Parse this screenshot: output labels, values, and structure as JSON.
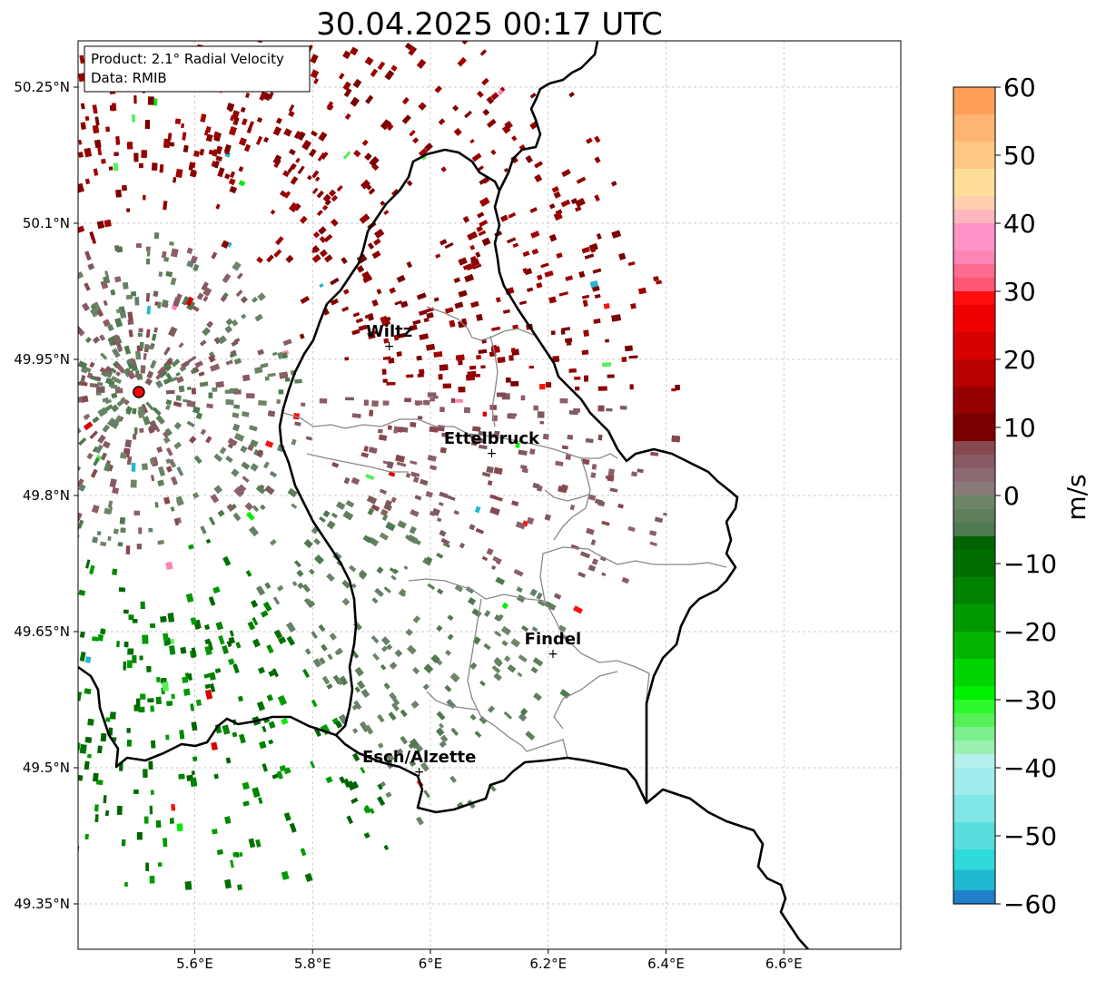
{
  "title": "30.04.2025 00:17 UTC",
  "info_box": {
    "product": "Product: 2.1° Radial Velocity",
    "data": "Data: RMIB"
  },
  "map": {
    "lon_range": [
      5.4,
      6.8
    ],
    "lat_range": [
      49.3,
      50.3
    ],
    "lon_ticks": [
      {
        "value": 5.6,
        "label": "5.6°E"
      },
      {
        "value": 5.8,
        "label": "5.8°E"
      },
      {
        "value": 6.0,
        "label": "6°E"
      },
      {
        "value": 6.2,
        "label": "6.2°E"
      },
      {
        "value": 6.4,
        "label": "6.4°E"
      },
      {
        "value": 6.6,
        "label": "6.6°E"
      }
    ],
    "lat_ticks": [
      {
        "value": 50.25,
        "label": "50.25°N"
      },
      {
        "value": 50.1,
        "label": "50.1°N"
      },
      {
        "value": 49.95,
        "label": "49.95°N"
      },
      {
        "value": 49.8,
        "label": "49.8°N"
      },
      {
        "value": 49.65,
        "label": "49.65°N"
      },
      {
        "value": 49.5,
        "label": "49.5°N"
      },
      {
        "value": 49.35,
        "label": "49.35°N"
      }
    ],
    "radar_site": {
      "lon": 5.505,
      "lat": 49.914
    },
    "cities": [
      {
        "name": "Wiltz",
        "lon": 5.93,
        "lat": 49.966
      },
      {
        "name": "Ettelbruck",
        "lon": 6.104,
        "lat": 49.848
      },
      {
        "name": "Findel",
        "lon": 6.208,
        "lat": 49.627
      },
      {
        "name": "Esch/Alzette",
        "lon": 5.981,
        "lat": 49.497
      }
    ]
  },
  "colorbar": {
    "label": "m/s",
    "min": -60,
    "max": 60,
    "ticks": [
      {
        "value": 60,
        "label": "60"
      },
      {
        "value": 50,
        "label": "50"
      },
      {
        "value": 40,
        "label": "40"
      },
      {
        "value": 30,
        "label": "30"
      },
      {
        "value": 20,
        "label": "20"
      },
      {
        "value": 10,
        "label": "10"
      },
      {
        "value": 0,
        "label": "0"
      },
      {
        "value": -10,
        "label": "−10"
      },
      {
        "value": -20,
        "label": "−20"
      },
      {
        "value": -30,
        "label": "−30"
      },
      {
        "value": -40,
        "label": "−40"
      },
      {
        "value": -50,
        "label": "−50"
      },
      {
        "value": -60,
        "label": "−60"
      }
    ],
    "bands": [
      {
        "from": 56,
        "to": 60,
        "color": "#ff9f5a"
      },
      {
        "from": 52,
        "to": 56,
        "color": "#ffb571"
      },
      {
        "from": 48,
        "to": 52,
        "color": "#ffc783"
      },
      {
        "from": 44,
        "to": 48,
        "color": "#ffdf98"
      },
      {
        "from": 42,
        "to": 44,
        "color": "#ffcfb0"
      },
      {
        "from": 40,
        "to": 42,
        "color": "#ffb6c0"
      },
      {
        "from": 36,
        "to": 40,
        "color": "#ff93c8"
      },
      {
        "from": 34,
        "to": 36,
        "color": "#ff84b6"
      },
      {
        "from": 32,
        "to": 34,
        "color": "#ff6c90"
      },
      {
        "from": 30,
        "to": 32,
        "color": "#ff5775"
      },
      {
        "from": 28,
        "to": 30,
        "color": "#ff0d0d"
      },
      {
        "from": 24,
        "to": 28,
        "color": "#ee0000"
      },
      {
        "from": 20,
        "to": 24,
        "color": "#d60000"
      },
      {
        "from": 16,
        "to": 20,
        "color": "#b80000"
      },
      {
        "from": 12,
        "to": 16,
        "color": "#950000"
      },
      {
        "from": 8,
        "to": 12,
        "color": "#7a0000"
      },
      {
        "from": 6,
        "to": 8,
        "color": "#874850"
      },
      {
        "from": 4,
        "to": 6,
        "color": "#8a5a64"
      },
      {
        "from": 2,
        "to": 4,
        "color": "#8c6a72"
      },
      {
        "from": 0,
        "to": 2,
        "color": "#8b7a7a"
      },
      {
        "from": -2,
        "to": 0,
        "color": "#6d8566"
      },
      {
        "from": -4,
        "to": -2,
        "color": "#5e7f5a"
      },
      {
        "from": -6,
        "to": -4,
        "color": "#4f794e"
      },
      {
        "from": -8,
        "to": -6,
        "color": "#006400"
      },
      {
        "from": -12,
        "to": -8,
        "color": "#006f00"
      },
      {
        "from": -16,
        "to": -12,
        "color": "#008300"
      },
      {
        "from": -20,
        "to": -16,
        "color": "#009a00"
      },
      {
        "from": -24,
        "to": -20,
        "color": "#00b400"
      },
      {
        "from": -28,
        "to": -24,
        "color": "#00d400"
      },
      {
        "from": -30,
        "to": -28,
        "color": "#00ee00"
      },
      {
        "from": -32,
        "to": -30,
        "color": "#2cf82c"
      },
      {
        "from": -34,
        "to": -32,
        "color": "#56f056"
      },
      {
        "from": -36,
        "to": -34,
        "color": "#7cf08c"
      },
      {
        "from": -38,
        "to": -36,
        "color": "#9af0b0"
      },
      {
        "from": -40,
        "to": -38,
        "color": "#b4f0ec"
      },
      {
        "from": -44,
        "to": -40,
        "color": "#a0ecec"
      },
      {
        "from": -48,
        "to": -44,
        "color": "#80e6e6"
      },
      {
        "from": -52,
        "to": -48,
        "color": "#58dede"
      },
      {
        "from": -55,
        "to": -52,
        "color": "#30dada"
      },
      {
        "from": -58,
        "to": -55,
        "color": "#20b8d0"
      },
      {
        "from": -60,
        "to": -58,
        "color": "#1f7fc8"
      }
    ]
  },
  "velocity_field": {
    "description_bins": [
      {
        "name": "outbound-strong",
        "value_min": 10,
        "value_max": 30,
        "color": "#8b0000"
      },
      {
        "name": "outbound-weak",
        "value_min": 0,
        "value_max": 10,
        "color": "#8c6068"
      },
      {
        "name": "inbound-weak",
        "value_min": -10,
        "value_max": 0,
        "color": "#5e7f5a"
      },
      {
        "name": "inbound-strong",
        "value_min": -30,
        "value_max": -10,
        "color": "#007000"
      }
    ]
  }
}
